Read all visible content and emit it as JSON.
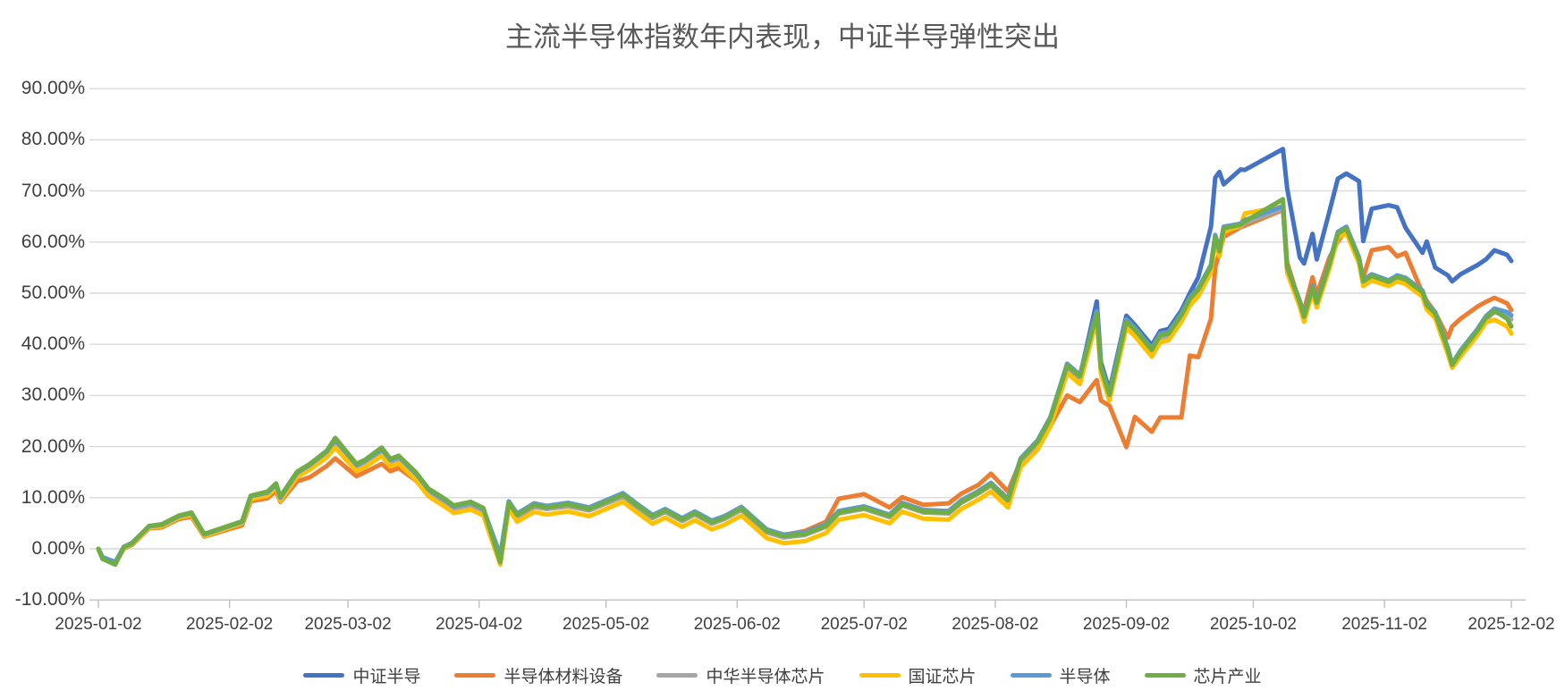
{
  "chart_data": {
    "type": "line",
    "title": "主流半导体指数年内表现，中证半导弹性突出",
    "grid": "horizontal",
    "legend_position": "bottom",
    "y_axis": {
      "min": -10,
      "max": 90,
      "step": 10,
      "format": "percent",
      "tick_labels": [
        "-10.00%",
        "0.00%",
        "10.00%",
        "20.00%",
        "30.00%",
        "40.00%",
        "50.00%",
        "60.00%",
        "70.00%",
        "80.00%",
        "90.00%"
      ]
    },
    "x_axis": {
      "tick_labels": [
        "2025-01-02",
        "2025-02-02",
        "2025-03-02",
        "2025-04-02",
        "2025-05-02",
        "2025-06-02",
        "2025-07-02",
        "2025-08-02",
        "2025-09-02",
        "2025-10-02",
        "2025-11-02",
        "2025-12-02"
      ]
    },
    "dates": [
      "2025-01-02",
      "2025-01-03",
      "2025-01-06",
      "2025-01-08",
      "2025-01-10",
      "2025-01-14",
      "2025-01-17",
      "2025-01-21",
      "2025-01-24",
      "2025-01-27",
      "2025-02-05",
      "2025-02-07",
      "2025-02-11",
      "2025-02-13",
      "2025-02-14",
      "2025-02-18",
      "2025-02-21",
      "2025-02-25",
      "2025-02-27",
      "2025-03-04",
      "2025-03-06",
      "2025-03-10",
      "2025-03-12",
      "2025-03-14",
      "2025-03-18",
      "2025-03-21",
      "2025-03-25",
      "2025-03-27",
      "2025-03-31",
      "2025-04-03",
      "2025-04-07",
      "2025-04-09",
      "2025-04-11",
      "2025-04-15",
      "2025-04-18",
      "2025-04-23",
      "2025-04-28",
      "2025-05-06",
      "2025-05-09",
      "2025-05-13",
      "2025-05-16",
      "2025-05-20",
      "2025-05-23",
      "2025-05-27",
      "2025-05-30",
      "2025-06-03",
      "2025-06-09",
      "2025-06-13",
      "2025-06-18",
      "2025-06-23",
      "2025-06-26",
      "2025-07-02",
      "2025-07-08",
      "2025-07-11",
      "2025-07-16",
      "2025-07-22",
      "2025-07-25",
      "2025-07-29",
      "2025-08-01",
      "2025-08-05",
      "2025-08-08",
      "2025-08-12",
      "2025-08-15",
      "2025-08-19",
      "2025-08-22",
      "2025-08-26",
      "2025-08-27",
      "2025-08-29",
      "2025-09-02",
      "2025-09-04",
      "2025-09-08",
      "2025-09-10",
      "2025-09-12",
      "2025-09-15",
      "2025-09-17",
      "2025-09-19",
      "2025-09-22",
      "2025-09-23",
      "2025-09-24",
      "2025-09-25",
      "2025-09-29",
      "2025-09-30",
      "2025-10-09",
      "2025-10-10",
      "2025-10-13",
      "2025-10-14",
      "2025-10-16",
      "2025-10-17",
      "2025-10-20",
      "2025-10-22",
      "2025-10-24",
      "2025-10-27",
      "2025-10-28",
      "2025-10-30",
      "2025-11-03",
      "2025-11-05",
      "2025-11-07",
      "2025-11-11",
      "2025-11-12",
      "2025-11-14",
      "2025-11-17",
      "2025-11-18",
      "2025-11-20",
      "2025-11-24",
      "2025-11-26",
      "2025-11-28",
      "2025-12-01",
      "2025-12-02"
    ],
    "series": [
      {
        "name": "中证半导",
        "color": "#4472C4",
        "values": [
          0.0,
          -1.7,
          -2.9,
          0.2,
          1.0,
          4.2,
          4.5,
          6.2,
          6.8,
          2.6,
          5.1,
          10.0,
          10.7,
          12.3,
          9.7,
          14.6,
          16.0,
          18.6,
          21.0,
          16.0,
          16.8,
          19.1,
          17.0,
          17.6,
          14.4,
          11.2,
          9.1,
          7.9,
          8.6,
          7.4,
          -2.0,
          8.9,
          6.5,
          8.5,
          8.0,
          8.6,
          7.7,
          10.5,
          8.6,
          6.2,
          7.4,
          5.6,
          6.9,
          5.1,
          6.0,
          7.8,
          3.4,
          2.4,
          2.8,
          4.4,
          7.0,
          7.9,
          6.3,
          8.6,
          7.2,
          7.0,
          9.1,
          10.9,
          12.5,
          9.4,
          17.3,
          20.8,
          25.3,
          35.8,
          33.6,
          48.4,
          36.5,
          31.0,
          45.6,
          43.8,
          39.8,
          42.6,
          43.0,
          46.6,
          50.0,
          53.1,
          63.0,
          72.6,
          73.7,
          71.3,
          74.2,
          74.1,
          78.2,
          70.5,
          57.0,
          55.8,
          61.6,
          56.6,
          66.0,
          72.4,
          73.4,
          71.9,
          60.2,
          66.5,
          67.2,
          66.8,
          62.8,
          57.9,
          60.1,
          55.0,
          53.5,
          52.3,
          53.7,
          55.5,
          56.6,
          58.4,
          57.5,
          56.3
        ]
      },
      {
        "name": "半导体材料设备",
        "color": "#ED7D31",
        "values": [
          0.0,
          -1.8,
          -2.5,
          0.0,
          0.8,
          4.0,
          4.2,
          5.8,
          6.3,
          2.4,
          4.6,
          9.3,
          9.9,
          11.3,
          9.2,
          13.2,
          14.0,
          16.2,
          17.7,
          14.2,
          15.0,
          16.6,
          15.2,
          15.8,
          13.4,
          10.6,
          8.7,
          7.6,
          8.3,
          7.0,
          -2.2,
          8.4,
          6.2,
          8.2,
          7.8,
          8.3,
          7.5,
          10.2,
          8.4,
          6.1,
          7.3,
          5.6,
          6.9,
          5.2,
          6.1,
          8.0,
          3.6,
          2.7,
          3.5,
          5.3,
          9.8,
          10.7,
          8.1,
          10.1,
          8.6,
          8.9,
          10.8,
          12.5,
          14.7,
          11.2,
          17.2,
          19.5,
          24.0,
          30.0,
          28.7,
          33.0,
          29.0,
          28.0,
          19.9,
          25.8,
          22.9,
          25.7,
          25.7,
          25.7,
          37.8,
          37.5,
          45.0,
          55.0,
          58.0,
          61.0,
          62.9,
          63.2,
          66.3,
          56.0,
          48.0,
          46.7,
          53.1,
          49.7,
          57.0,
          60.1,
          62.4,
          56.5,
          53.1,
          58.4,
          59.0,
          57.2,
          57.9,
          50.0,
          48.5,
          46.2,
          41.3,
          43.5,
          45.0,
          47.4,
          48.3,
          49.1,
          48.0,
          46.7
        ]
      },
      {
        "name": "中华半导体芯片",
        "color": "#A5A5A5",
        "values": [
          0.0,
          -1.9,
          -2.8,
          0.0,
          0.9,
          4.1,
          4.4,
          6.0,
          6.6,
          2.5,
          5.0,
          9.8,
          10.5,
          12.1,
          9.5,
          14.3,
          15.7,
          18.3,
          20.6,
          15.7,
          16.5,
          18.8,
          16.7,
          17.3,
          14.1,
          11.0,
          8.9,
          7.7,
          8.4,
          7.2,
          -1.8,
          8.7,
          6.3,
          8.3,
          7.8,
          8.4,
          7.5,
          10.2,
          8.3,
          6.0,
          7.2,
          5.4,
          6.7,
          4.9,
          5.8,
          7.6,
          3.2,
          2.2,
          2.7,
          4.3,
          6.9,
          7.8,
          6.2,
          8.5,
          7.1,
          6.9,
          9.0,
          10.8,
          12.4,
          9.3,
          17.2,
          20.6,
          25.1,
          35.5,
          33.4,
          45.6,
          35.0,
          29.7,
          44.1,
          42.4,
          38.5,
          41.3,
          41.7,
          45.2,
          48.4,
          50.2,
          54.8,
          60.6,
          57.8,
          62.4,
          63.0,
          63.7,
          66.5,
          54.6,
          47.9,
          45.1,
          50.8,
          47.8,
          55.4,
          61.4,
          62.3,
          56.4,
          52.0,
          53.1,
          52.0,
          52.9,
          52.4,
          49.9,
          47.4,
          45.7,
          38.7,
          35.8,
          38.2,
          42.4,
          44.9,
          46.3,
          45.6,
          44.9
        ]
      },
      {
        "name": "国证芯片",
        "color": "#FFC000",
        "values": [
          0.0,
          -1.7,
          -2.9,
          0.1,
          1.0,
          4.1,
          4.4,
          6.1,
          6.6,
          2.5,
          5.0,
          9.7,
          10.4,
          12.0,
          9.4,
          14.1,
          15.5,
          17.9,
          19.8,
          15.2,
          16.0,
          18.2,
          16.1,
          16.7,
          13.5,
          10.3,
          8.2,
          7.0,
          7.7,
          6.5,
          -3.1,
          7.8,
          5.3,
          7.2,
          6.7,
          7.3,
          6.4,
          9.2,
          7.3,
          4.9,
          6.1,
          4.3,
          5.6,
          3.8,
          4.7,
          6.5,
          2.1,
          1.1,
          1.5,
          3.1,
          5.7,
          6.6,
          5.0,
          7.3,
          5.9,
          5.7,
          7.8,
          9.6,
          11.2,
          8.1,
          16.0,
          19.4,
          23.9,
          34.4,
          32.2,
          44.8,
          34.2,
          29.0,
          43.2,
          41.6,
          37.6,
          40.4,
          40.8,
          44.4,
          47.6,
          49.4,
          54.0,
          60.0,
          57.2,
          62.0,
          63.2,
          65.6,
          67.0,
          54.0,
          47.3,
          44.4,
          50.2,
          47.2,
          54.8,
          60.8,
          61.8,
          55.8,
          51.4,
          52.5,
          51.4,
          52.3,
          51.8,
          49.3,
          46.8,
          45.1,
          38.1,
          35.4,
          37.6,
          41.8,
          44.3,
          44.8,
          43.5,
          42.1
        ]
      },
      {
        "name": "半导体",
        "color": "#5B9BD5",
        "values": [
          0.0,
          -1.6,
          -2.6,
          0.4,
          1.2,
          4.4,
          4.7,
          6.4,
          7.0,
          2.8,
          5.3,
          10.3,
          11.0,
          12.6,
          10.0,
          14.9,
          16.4,
          19.0,
          21.4,
          16.4,
          17.2,
          19.5,
          17.4,
          18.0,
          14.8,
          11.6,
          9.5,
          8.3,
          9.0,
          7.8,
          -1.2,
          9.3,
          6.9,
          8.9,
          8.4,
          9.0,
          8.1,
          10.9,
          9.0,
          6.6,
          7.8,
          6.0,
          7.3,
          5.5,
          6.4,
          8.2,
          3.8,
          2.8,
          3.2,
          4.8,
          7.4,
          8.3,
          6.7,
          9.0,
          7.6,
          7.4,
          9.5,
          11.3,
          12.9,
          9.8,
          17.7,
          21.2,
          25.7,
          36.2,
          34.0,
          46.5,
          35.7,
          30.4,
          44.9,
          43.2,
          39.2,
          42.1,
          42.4,
          46.0,
          49.2,
          51.0,
          55.5,
          61.4,
          58.5,
          63.0,
          63.6,
          64.3,
          67.0,
          55.0,
          48.5,
          45.7,
          51.4,
          48.4,
          56.0,
          62.0,
          63.0,
          57.0,
          52.6,
          53.7,
          52.5,
          53.5,
          53.0,
          50.5,
          48.0,
          46.3,
          39.3,
          36.2,
          38.8,
          43.0,
          45.5,
          47.0,
          46.3,
          45.7
        ]
      },
      {
        "name": "芯片产业",
        "color": "#70AD47",
        "values": [
          0.0,
          -2.0,
          -3.1,
          0.3,
          1.1,
          4.5,
          4.8,
          6.5,
          7.1,
          2.9,
          5.4,
          10.4,
          11.2,
          12.8,
          10.2,
          15.1,
          16.6,
          19.2,
          21.7,
          16.6,
          17.4,
          19.8,
          17.6,
          18.2,
          15.0,
          11.8,
          9.7,
          8.5,
          9.2,
          8.0,
          -2.6,
          9.0,
          6.6,
          8.6,
          8.1,
          8.7,
          7.8,
          10.6,
          8.7,
          6.3,
          7.5,
          5.7,
          7.0,
          5.2,
          6.1,
          7.9,
          3.5,
          2.5,
          2.9,
          4.5,
          7.1,
          8.0,
          6.4,
          8.7,
          7.3,
          7.1,
          9.2,
          11.0,
          12.6,
          9.5,
          17.5,
          20.9,
          25.4,
          35.9,
          33.7,
          46.0,
          35.4,
          30.1,
          44.5,
          42.9,
          38.9,
          41.8,
          42.1,
          45.7,
          48.9,
          50.7,
          55.2,
          61.0,
          58.2,
          62.7,
          63.4,
          64.0,
          68.4,
          55.2,
          48.2,
          45.4,
          51.1,
          48.1,
          55.7,
          61.7,
          62.7,
          56.7,
          52.3,
          53.4,
          52.2,
          53.2,
          52.7,
          50.2,
          47.7,
          46.0,
          39.0,
          36.0,
          38.5,
          42.7,
          45.2,
          46.6,
          45.0,
          43.5
        ]
      }
    ],
    "colors": {
      "gridline": "#D9D9D9",
      "axis_line": "#BFBFBF",
      "axis_text": "#404040",
      "title_text": "#595959"
    }
  }
}
